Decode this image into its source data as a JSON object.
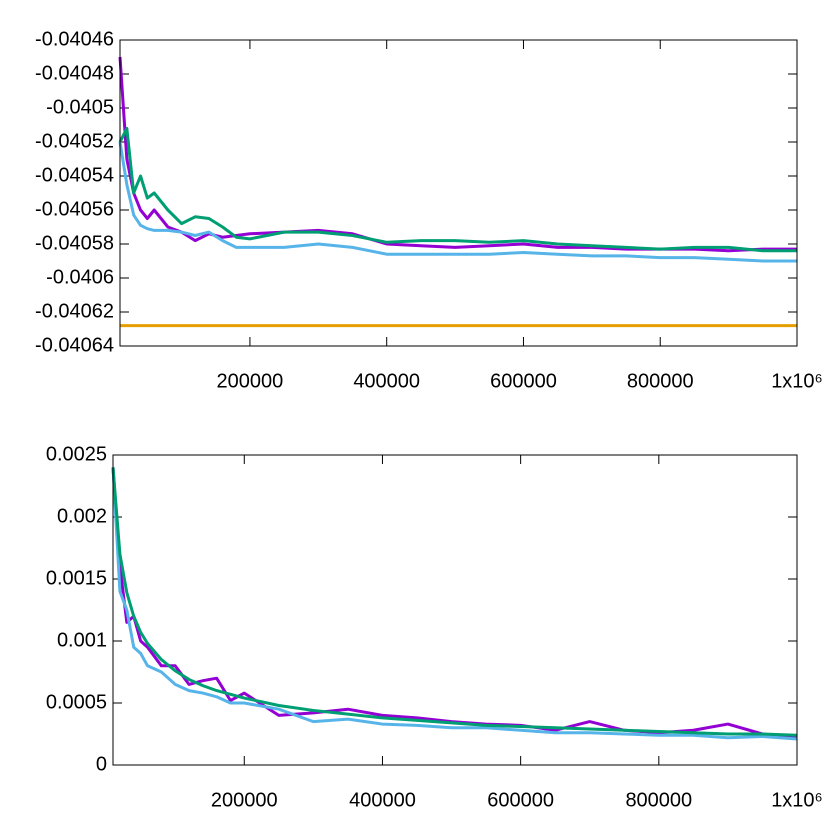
{
  "chart_data": [
    {
      "type": "line",
      "x": [
        10000,
        20000,
        30000,
        40000,
        50000,
        60000,
        80000,
        100000,
        120000,
        140000,
        160000,
        180000,
        200000,
        250000,
        300000,
        350000,
        400000,
        450000,
        500000,
        550000,
        600000,
        650000,
        700000,
        750000,
        800000,
        850000,
        900000,
        950000,
        1000000
      ],
      "xlim": [
        10000,
        1000000
      ],
      "xticks": [
        200000,
        400000,
        600000,
        800000,
        {
          "value": 1000000,
          "label": "1x10⁶"
        }
      ],
      "ylim": [
        -0.04064,
        -0.04046
      ],
      "yticks": [
        -0.04064,
        -0.04062,
        -0.0406,
        -0.04058,
        -0.04056,
        -0.04054,
        -0.04052,
        -0.0405,
        -0.04048,
        -0.04046
      ],
      "series": [
        {
          "color": "#9400d3",
          "values": [
            -0.04047,
            -0.04053,
            -0.04055,
            -0.04056,
            -0.040565,
            -0.04056,
            -0.04057,
            -0.040573,
            -0.040578,
            -0.040574,
            -0.040576,
            -0.040575,
            -0.040574,
            -0.040573,
            -0.040572,
            -0.040574,
            -0.04058,
            -0.040581,
            -0.040582,
            -0.040581,
            -0.04058,
            -0.040582,
            -0.040582,
            -0.040583,
            -0.040583,
            -0.040583,
            -0.040584,
            -0.040583,
            -0.040583
          ]
        },
        {
          "color": "#009e73",
          "values": [
            -0.04052,
            -0.040512,
            -0.04055,
            -0.04054,
            -0.040553,
            -0.04055,
            -0.04056,
            -0.040568,
            -0.040564,
            -0.040565,
            -0.04057,
            -0.040576,
            -0.040577,
            -0.040573,
            -0.040573,
            -0.040575,
            -0.040579,
            -0.040578,
            -0.040578,
            -0.040579,
            -0.040578,
            -0.04058,
            -0.040581,
            -0.040582,
            -0.040583,
            -0.040582,
            -0.040582,
            -0.040584,
            -0.040584
          ]
        },
        {
          "color": "#56b4e9",
          "values": [
            -0.04052,
            -0.040545,
            -0.040563,
            -0.040569,
            -0.040571,
            -0.040572,
            -0.040572,
            -0.040573,
            -0.040575,
            -0.040573,
            -0.040578,
            -0.040582,
            -0.040582,
            -0.040582,
            -0.04058,
            -0.040582,
            -0.040586,
            -0.040586,
            -0.040586,
            -0.040586,
            -0.040585,
            -0.040586,
            -0.040587,
            -0.040587,
            -0.040588,
            -0.040588,
            -0.040589,
            -0.04059,
            -0.04059
          ]
        },
        {
          "color": "#e69f00",
          "values": [
            -0.040628,
            -0.040628,
            -0.040628,
            -0.040628,
            -0.040628,
            -0.040628,
            -0.040628,
            -0.040628,
            -0.040628,
            -0.040628,
            -0.040628,
            -0.040628,
            -0.040628,
            -0.040628,
            -0.040628,
            -0.040628,
            -0.040628,
            -0.040628,
            -0.040628,
            -0.040628,
            -0.040628,
            -0.040628,
            -0.040628,
            -0.040628,
            -0.040628,
            -0.040628,
            -0.040628,
            -0.040628,
            -0.040628
          ]
        }
      ]
    },
    {
      "type": "line",
      "x": [
        10000,
        20000,
        30000,
        40000,
        50000,
        60000,
        80000,
        100000,
        120000,
        140000,
        160000,
        180000,
        200000,
        250000,
        300000,
        350000,
        400000,
        450000,
        500000,
        550000,
        600000,
        650000,
        700000,
        750000,
        800000,
        850000,
        900000,
        950000,
        1000000
      ],
      "xlim": [
        10000,
        1000000
      ],
      "xticks": [
        200000,
        400000,
        600000,
        800000,
        {
          "value": 1000000,
          "label": "1x10⁶"
        }
      ],
      "ylim": [
        0,
        0.0025
      ],
      "yticks": [
        0,
        0.0005,
        0.001,
        0.0015,
        0.002,
        0.0025
      ],
      "series": [
        {
          "color": "#9400d3",
          "values": [
            0.0024,
            0.0016,
            0.00115,
            0.0012,
            0.001,
            0.00095,
            0.0008,
            0.0008,
            0.00065,
            0.00068,
            0.0007,
            0.00052,
            0.00058,
            0.0004,
            0.00042,
            0.00045,
            0.0004,
            0.00038,
            0.00035,
            0.00033,
            0.00032,
            0.00028,
            0.00035,
            0.00028,
            0.00026,
            0.00028,
            0.00033,
            0.00025,
            0.00022
          ]
        },
        {
          "color": "#56b4e9",
          "values": [
            0.0024,
            0.0014,
            0.00125,
            0.00095,
            0.0009,
            0.0008,
            0.00075,
            0.00065,
            0.0006,
            0.00058,
            0.00055,
            0.0005,
            0.0005,
            0.00045,
            0.00035,
            0.00037,
            0.00033,
            0.00032,
            0.0003,
            0.0003,
            0.00028,
            0.00026,
            0.00026,
            0.00025,
            0.00024,
            0.00024,
            0.00022,
            0.00023,
            0.00021
          ]
        },
        {
          "color": "#009e73",
          "values": [
            0.0024,
            0.0017,
            0.00139,
            0.0012,
            0.00107,
            0.00098,
            0.00085,
            0.00076,
            0.00069,
            0.00064,
            0.0006,
            0.00057,
            0.00054,
            0.00048,
            0.00044,
            0.00041,
            0.00038,
            0.00036,
            0.00034,
            0.00032,
            0.00031,
            0.0003,
            0.00029,
            0.00028,
            0.00027,
            0.00026,
            0.00025,
            0.00025,
            0.00024
          ]
        }
      ]
    }
  ]
}
